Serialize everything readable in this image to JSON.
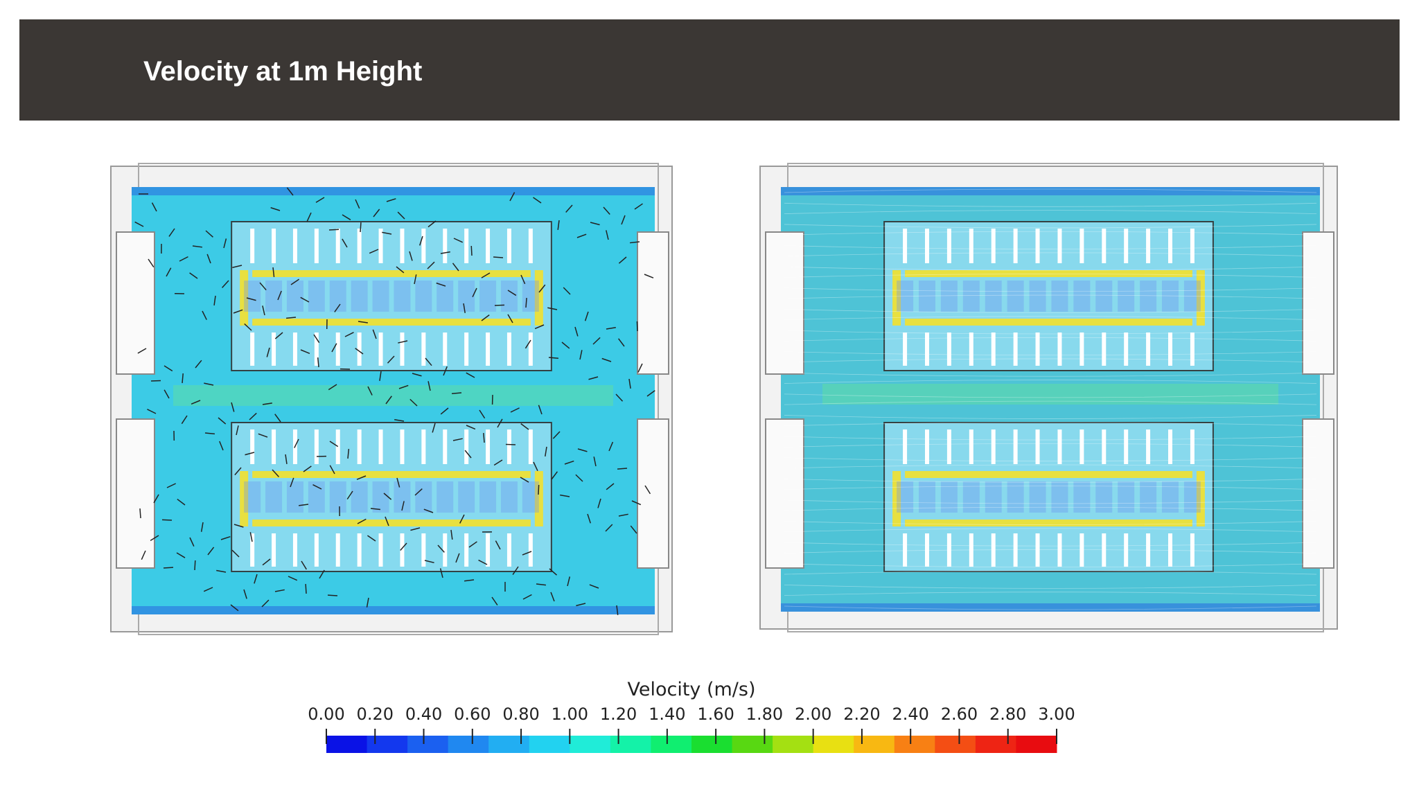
{
  "header": {
    "title": "Velocity at 1m Height"
  },
  "colorbar": {
    "label": "Velocity (m/s)",
    "range": [
      0,
      3
    ],
    "ticks": [
      {
        "value": 0,
        "label": "0.00"
      },
      {
        "value": 0.2,
        "label": "0.20"
      },
      {
        "value": 0.4,
        "label": "0.40"
      },
      {
        "value": 0.6,
        "label": "0.60"
      },
      {
        "value": 0.8,
        "label": "0.80"
      },
      {
        "value": 1,
        "label": "1.00"
      },
      {
        "value": 1.2,
        "label": "1.20"
      },
      {
        "value": 1.4,
        "label": "1.40"
      },
      {
        "value": 1.6,
        "label": "1.60"
      },
      {
        "value": 1.8,
        "label": "1.80"
      },
      {
        "value": 2,
        "label": "2.00"
      },
      {
        "value": 2.2,
        "label": "2.20"
      },
      {
        "value": 2.4,
        "label": "2.40"
      },
      {
        "value": 2.6,
        "label": "2.60"
      },
      {
        "value": 2.8,
        "label": "2.80"
      },
      {
        "value": 3,
        "label": "3.00"
      }
    ]
  }
}
